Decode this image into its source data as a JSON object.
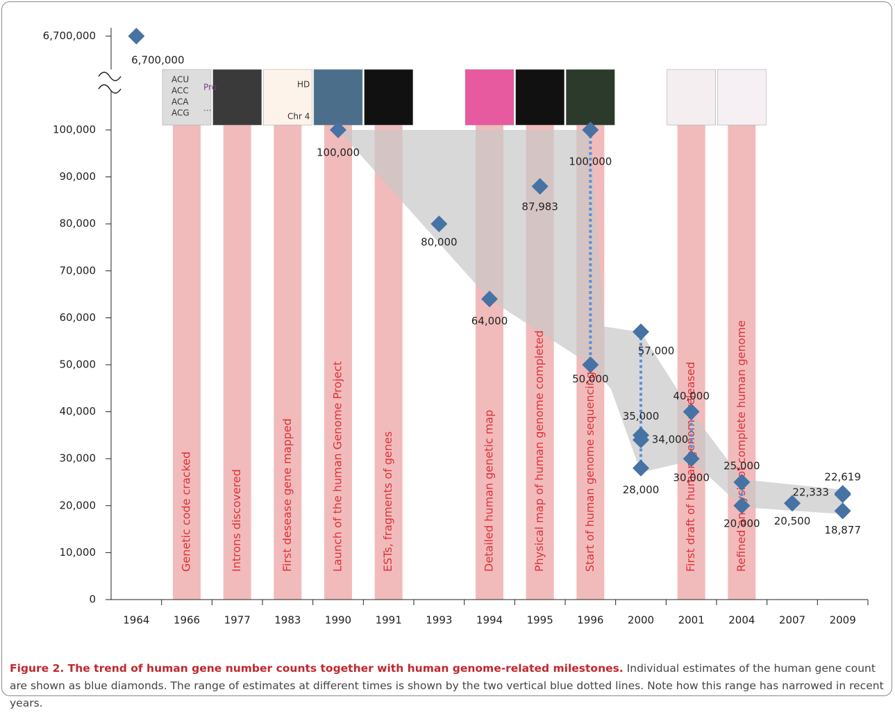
{
  "chart_data": {
    "type": "scatter",
    "categories": [
      "1964",
      "1966",
      "1977",
      "1983",
      "1990",
      "1991",
      "1993",
      "1994",
      "1995",
      "1996",
      "2000",
      "2001",
      "2004",
      "2007",
      "2009"
    ],
    "ylim": [
      0,
      100000
    ],
    "axis_break": true,
    "yticks": [
      0,
      {
        "value": 10000,
        "label": "10,000"
      },
      {
        "value": 20000,
        "label": "20,000"
      },
      {
        "value": 30000,
        "label": "30,000"
      },
      {
        "value": 40000,
        "label": "40,000"
      },
      {
        "value": 50000,
        "label": "50,000"
      },
      {
        "value": 60000,
        "label": "60,000"
      },
      {
        "value": 70000,
        "label": "70,000"
      },
      {
        "value": 80000,
        "label": "80,000"
      },
      {
        "value": 90000,
        "label": "90,000"
      },
      {
        "value": 100000,
        "label": "100,000"
      },
      {
        "value": 6700000,
        "label": "6,700,000"
      }
    ],
    "color": "#4672a4",
    "x": [
      "1964",
      "1990",
      "1993",
      "1994",
      "1995",
      "1996",
      "1996",
      "2000",
      "2000",
      "2000",
      "2000",
      "2001",
      "2001",
      "2004",
      "2004",
      "2007",
      "2009",
      "2009",
      "2009"
    ],
    "values": [
      6700000,
      100000,
      80000,
      64000,
      87983,
      100000,
      50000,
      57000,
      35000,
      34000,
      28000,
      40000,
      30000,
      25000,
      20000,
      20500,
      22619,
      22333,
      18877
    ],
    "value_labels": [
      "6,700,000",
      "100,000",
      "80,000",
      "64,000",
      "87,983",
      "100,000",
      "50,000",
      "57,000",
      "35,000",
      "34,000",
      "28,000",
      "40,000",
      "30,000",
      "25,000",
      "20,000",
      "20,500",
      "22,619",
      "22,333",
      "18,877"
    ],
    "range_years": [
      "1996",
      "2000",
      "2001",
      "2004"
    ],
    "range_color": "#5b8fd6",
    "milestone_color": "#f0b4b4",
    "milestone_text_color": "#e0303a",
    "milestones": [
      {
        "x": "1966",
        "label": "Genetic code cracked"
      },
      {
        "x": "1977",
        "label": "Introns discovered"
      },
      {
        "x": "1983",
        "label": "First desease gene mapped"
      },
      {
        "x": "1990",
        "label": "Launch of the human Genome Project"
      },
      {
        "x": "1991",
        "label": "ESTs, fragments of genes"
      },
      {
        "x": "1994",
        "label": "Detailed human genetic map"
      },
      {
        "x": "1995",
        "label": "Physical map of human genome completed"
      },
      {
        "x": "1996",
        "label": "Start of human genome  sequencing"
      },
      {
        "x": "2001",
        "label": "First draft of human genome released"
      },
      {
        "x": "2004",
        "label": "Refined analysis of complete human genome"
      }
    ],
    "thumbnail_texts": [
      "ACU",
      "ACC",
      "ACA",
      "ACG",
      "Pro",
      "...",
      "HD",
      "Chr 4"
    ],
    "caption_title": "Figure 2. The trend of human gene number counts together with human genome-related milestones.",
    "caption_text": "Individual estimates of the human gene count are shown as blue diamonds. The range of estimates at different times is shown by the two vertical blue dotted lines. Note how this range has narrowed in recent years."
  }
}
